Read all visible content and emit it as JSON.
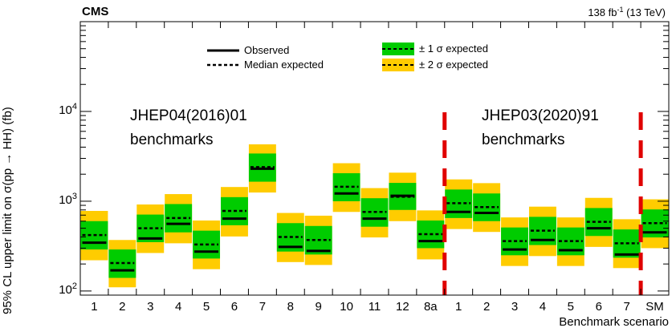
{
  "header": {
    "experiment": "CMS",
    "lumi_value": "138 fb",
    "lumi_sup": "-1",
    "lumi_energy": " (13 TeV)"
  },
  "annotations": {
    "left_group_line1": "JHEP04(2016)01",
    "left_group_line2": "benchmarks",
    "right_group_line1": "JHEP03(2020)91",
    "right_group_line2": "benchmarks"
  },
  "legend": {
    "observed": "Observed",
    "median_expected": "Median expected",
    "one_sigma": "± 1 σ expected",
    "two_sigma": "± 2 σ expected"
  },
  "colors": {
    "one_sigma": "#00cc00",
    "two_sigma": "#ffcc00",
    "divider": "#e00000"
  },
  "chart_data": {
    "type": "bar",
    "xlabel": "Benchmark scenario",
    "ylabel": "95% CL upper limit on  σ(pp → HH) (fb)",
    "yscale": "log",
    "ylim": [
      90,
      100000
    ],
    "y_ticks": [
      {
        "value": 100,
        "label": "10",
        "exp": "2"
      },
      {
        "value": 1000,
        "label": "10",
        "exp": "3"
      },
      {
        "value": 10000,
        "label": "10",
        "exp": "4"
      }
    ],
    "categories": [
      "1",
      "2",
      "3",
      "4",
      "5",
      "6",
      "7",
      "8",
      "9",
      "10",
      "11",
      "12",
      "8a",
      "1",
      "2",
      "3",
      "4",
      "5",
      "6",
      "7",
      "SM"
    ],
    "dividers_after_index": [
      12,
      19
    ],
    "observed": [
      345,
      170,
      385,
      560,
      275,
      640,
      2300,
      310,
      280,
      1220,
      640,
      1150,
      360,
      760,
      740,
      290,
      370,
      285,
      500,
      255,
      450
    ],
    "expected": [
      420,
      205,
      500,
      650,
      330,
      780,
      2400,
      400,
      370,
      1450,
      760,
      1120,
      430,
      950,
      860,
      360,
      470,
      360,
      590,
      340,
      570
    ],
    "one_sigma_low": [
      290,
      140,
      350,
      450,
      230,
      540,
      1650,
      275,
      255,
      1000,
      520,
      800,
      300,
      650,
      600,
      250,
      325,
      250,
      410,
      235,
      395
    ],
    "one_sigma_high": [
      600,
      290,
      710,
      930,
      470,
      1110,
      3400,
      570,
      530,
      2050,
      1080,
      1600,
      610,
      1350,
      1220,
      510,
      670,
      510,
      840,
      485,
      810
    ],
    "two_sigma_low": [
      220,
      110,
      265,
      340,
      175,
      405,
      1250,
      210,
      195,
      760,
      395,
      600,
      225,
      490,
      455,
      190,
      245,
      190,
      310,
      180,
      300
    ],
    "two_sigma_high": [
      780,
      370,
      920,
      1200,
      610,
      1440,
      4300,
      740,
      690,
      2650,
      1400,
      2080,
      790,
      1750,
      1590,
      660,
      870,
      660,
      1090,
      630,
      1050
    ]
  }
}
